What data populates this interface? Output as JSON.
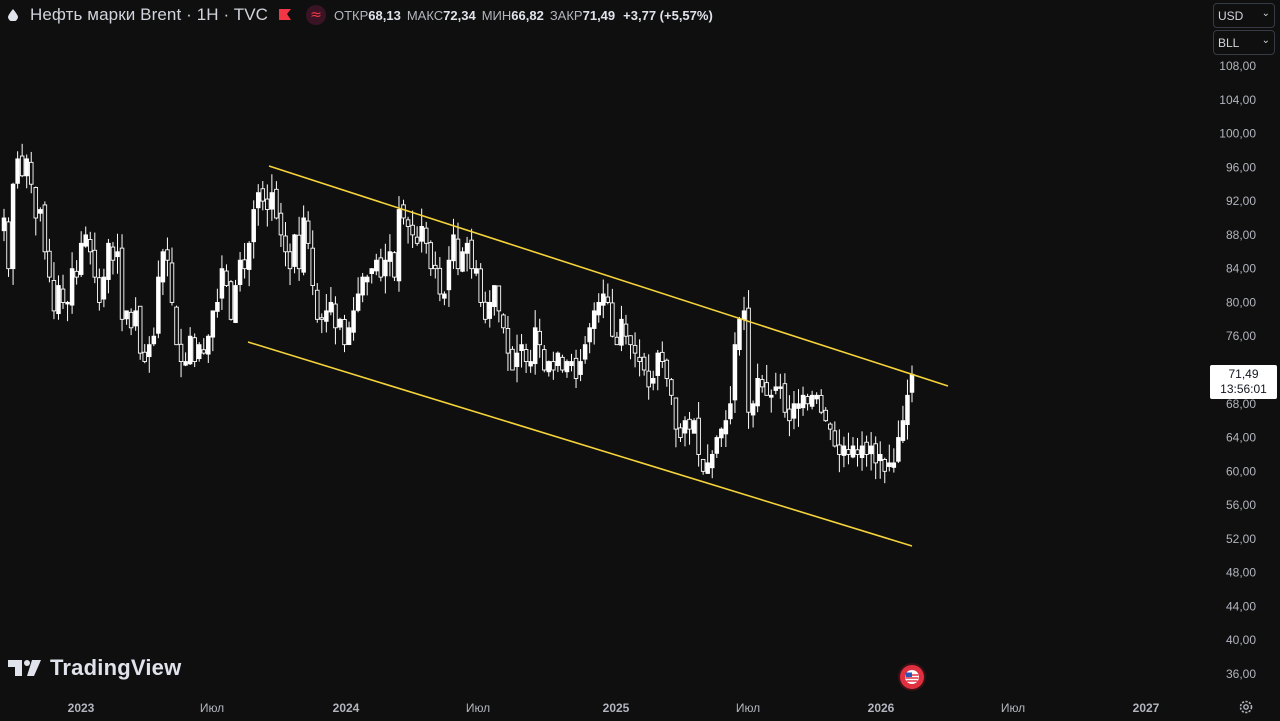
{
  "header": {
    "title": "Нефть марки Brent · 1H · TVC",
    "ohlc": {
      "open_label": "ОТКР",
      "open": "68,13",
      "high_label": "МАКС",
      "high": "72,34",
      "low_label": "МИН",
      "low": "66,82",
      "close_label": "ЗАКР",
      "close": "71,49",
      "change": "+3,77 (+5,57%)"
    }
  },
  "selectors": {
    "currency": "USD",
    "unit": "BLL"
  },
  "price_label": {
    "price": "71,49",
    "countdown": "13:56:01"
  },
  "logo_text": "TradingView",
  "icons": {
    "drop": "oil-drop-icon",
    "flag": "flag-icon",
    "wave": "approx-icon",
    "event": "us-flag-event-icon",
    "settings": "gear-icon"
  },
  "colors": {
    "background": "#0f0f0f",
    "candle_up": "#ffffff",
    "candle_down": "#ffffff",
    "trendline": "#f5d33b",
    "accent_red": "#f23645"
  },
  "chart_data": {
    "type": "candlestick",
    "y_ticks": [
      "108,00",
      "104,00",
      "100,00",
      "96,00",
      "92,00",
      "88,00",
      "84,00",
      "80,00",
      "76,00",
      "68,00",
      "64,00",
      "60,00",
      "56,00",
      "52,00",
      "48,00",
      "44,00",
      "40,00",
      "36,00"
    ],
    "x_ticks": [
      "2023",
      "Июл",
      "2024",
      "Июл",
      "2025",
      "Июл",
      "2026",
      "Июл",
      "2027"
    ],
    "ylim": [
      34,
      110
    ],
    "xlim": [
      "2022-11",
      "2027-06"
    ],
    "last_price": 71.49,
    "trendlines": [
      {
        "from": [
          "2023-09",
          96.0
        ],
        "to": [
          "2026-03",
          70.5
        ]
      },
      {
        "from": [
          "2023-07",
          75.5
        ],
        "to": [
          "2026-02",
          51.5
        ]
      }
    ],
    "closes": [
      90,
      84,
      94,
      97,
      95,
      97,
      94,
      90,
      91,
      86,
      83,
      79,
      82,
      80,
      80,
      84,
      83,
      87,
      88,
      86,
      83,
      80,
      83,
      87,
      85,
      86,
      78,
      79,
      77,
      79,
      74,
      73,
      75,
      76,
      83,
      86,
      85,
      80,
      75,
      73,
      73,
      76,
      73,
      75,
      74,
      76,
      79,
      80,
      84,
      82,
      78,
      82,
      85,
      84,
      87,
      91,
      93,
      92,
      91,
      93,
      90,
      88,
      86,
      84,
      88,
      84,
      90,
      87,
      82,
      78,
      78,
      79,
      80,
      77,
      78,
      75,
      77,
      79,
      81,
      83,
      83,
      84,
      85,
      83,
      85,
      86,
      83,
      91,
      90,
      89,
      88,
      87,
      89,
      87,
      84,
      84,
      81,
      81,
      85,
      88,
      84,
      86,
      87,
      84,
      84,
      80,
      78,
      80,
      82,
      79,
      77,
      74,
      72,
      74,
      75,
      73,
      73,
      77,
      75,
      72,
      73,
      72,
      74,
      72,
      73,
      73,
      71,
      73,
      75,
      77,
      79,
      80,
      81,
      80,
      76,
      75,
      78,
      76,
      75,
      74,
      73,
      72,
      70,
      71,
      74,
      73,
      71,
      69,
      65,
      64,
      66,
      65,
      66,
      62,
      60,
      61,
      62,
      64,
      65,
      66,
      68,
      75,
      78,
      79,
      67,
      68,
      71,
      70,
      69,
      69,
      70,
      70,
      67,
      66,
      68,
      68,
      69,
      68,
      69,
      69,
      67,
      66,
      65,
      63,
      62,
      63,
      62,
      63,
      62,
      63,
      62,
      63,
      61,
      62,
      60,
      61,
      61,
      64,
      66,
      69,
      71.49
    ],
    "volatility": 2.2
  }
}
